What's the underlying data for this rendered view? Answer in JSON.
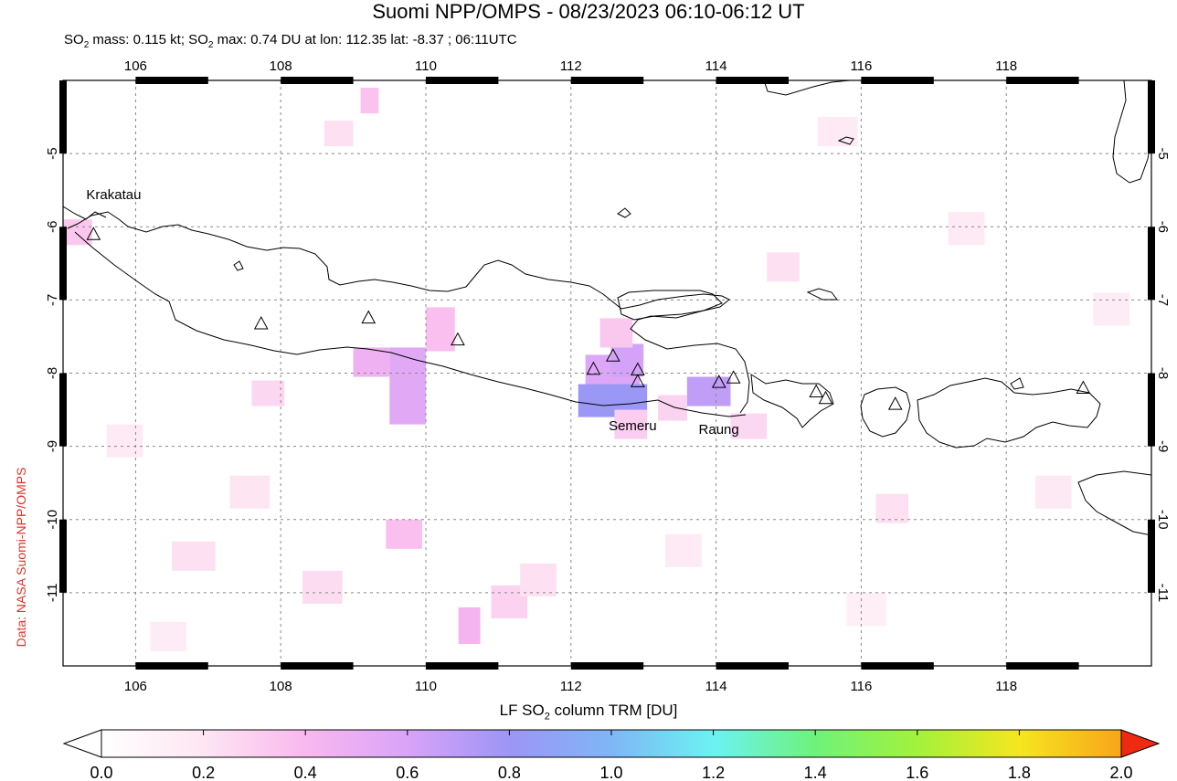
{
  "title": "Suomi NPP/OMPS - 08/23/2023 06:10-06:12 UT",
  "subtitle": {
    "mass_label": "SO",
    "mass_sub": "2",
    "mass_text": " mass: 0.115 kt; SO",
    "max_sub": "2",
    "max_text": " max: 0.74 DU at lon: 112.35 lat: -8.37 ; 06:11UTC"
  },
  "credit": "Data: NASA Suomi-NPP/OMPS",
  "colorbar": {
    "label_pre": "LF SO",
    "label_sub": "2",
    "label_post": " column TRM [DU]",
    "min": 0.0,
    "max": 2.0,
    "ticks": [
      "0.0",
      "0.2",
      "0.4",
      "0.6",
      "0.8",
      "1.0",
      "1.2",
      "1.4",
      "1.6",
      "1.8",
      "2.0"
    ],
    "colors": [
      "#ffffff",
      "#fde6f2",
      "#f9b8ee",
      "#d9a3f8",
      "#9d95f5",
      "#7fb6f6",
      "#6cf2f2",
      "#6ff27a",
      "#a2f23c",
      "#f5e620",
      "#f8a51a",
      "#ef2a12"
    ]
  },
  "map": {
    "lon_range": [
      105,
      120
    ],
    "lat_range": [
      -12,
      -4
    ],
    "lon_ticks": [
      "106",
      "108",
      "110",
      "112",
      "114",
      "116",
      "118"
    ],
    "lat_ticks": [
      "-5",
      "-6",
      "-7",
      "-8",
      "-9",
      "-10",
      "-11"
    ],
    "volcanoes": [
      {
        "name": "Krakatau",
        "lon": 105.42,
        "lat": -6.1
      },
      {
        "name": "",
        "lon": 107.73,
        "lat": -7.32
      },
      {
        "name": "",
        "lon": 109.21,
        "lat": -7.24
      },
      {
        "name": "",
        "lon": 110.44,
        "lat": -7.54
      },
      {
        "name": "",
        "lon": 112.31,
        "lat": -7.94
      },
      {
        "name": "",
        "lon": 112.58,
        "lat": -7.76
      },
      {
        "name": "",
        "lon": 112.92,
        "lat": -7.95
      },
      {
        "name": "Semeru",
        "lon": 112.92,
        "lat": -8.11
      },
      {
        "name": "Raung",
        "lon": 114.04,
        "lat": -8.12
      },
      {
        "name": "",
        "lon": 114.24,
        "lat": -8.06
      },
      {
        "name": "",
        "lon": 115.38,
        "lat": -8.25
      },
      {
        "name": "",
        "lon": 115.51,
        "lat": -8.34
      },
      {
        "name": "",
        "lon": 116.47,
        "lat": -8.42
      },
      {
        "name": "",
        "lon": 119.06,
        "lat": -8.2
      }
    ],
    "labels": [
      {
        "text": "Krakatau",
        "lon": 105.32,
        "lat": -5.62
      },
      {
        "text": "Semeru",
        "lon": 112.52,
        "lat": -8.78
      },
      {
        "text": "Raung",
        "lon": 113.76,
        "lat": -8.83
      }
    ],
    "so2_cells": [
      {
        "lon": 112.2,
        "lat": -7.75,
        "w": 0.75,
        "h": 0.4,
        "v": 0.52
      },
      {
        "lon": 112.55,
        "lat": -7.6,
        "w": 0.45,
        "h": 0.45,
        "v": 0.56
      },
      {
        "lon": 112.1,
        "lat": -8.15,
        "w": 0.95,
        "h": 0.45,
        "v": 0.74
      },
      {
        "lon": 113.6,
        "lat": -8.05,
        "w": 0.6,
        "h": 0.4,
        "v": 0.62
      },
      {
        "lon": 109.5,
        "lat": -7.65,
        "w": 0.5,
        "h": 1.05,
        "v": 0.5
      },
      {
        "lon": 109.0,
        "lat": -7.65,
        "w": 0.5,
        "h": 0.4,
        "v": 0.42
      },
      {
        "lon": 110.0,
        "lat": -7.1,
        "w": 0.4,
        "h": 0.6,
        "v": 0.34
      },
      {
        "lon": 112.4,
        "lat": -7.25,
        "w": 0.45,
        "h": 0.4,
        "v": 0.3
      },
      {
        "lon": 109.45,
        "lat": -10.0,
        "w": 0.5,
        "h": 0.4,
        "v": 0.34
      },
      {
        "lon": 110.45,
        "lat": -11.2,
        "w": 0.3,
        "h": 0.5,
        "v": 0.4
      },
      {
        "lon": 105.0,
        "lat": -5.9,
        "w": 0.4,
        "h": 0.35,
        "v": 0.3
      },
      {
        "lon": 109.1,
        "lat": -4.1,
        "w": 0.25,
        "h": 0.35,
        "v": 0.32
      },
      {
        "lon": 112.6,
        "lat": -8.5,
        "w": 0.45,
        "h": 0.4,
        "v": 0.28
      },
      {
        "lon": 113.2,
        "lat": -8.3,
        "w": 0.4,
        "h": 0.35,
        "v": 0.26
      },
      {
        "lon": 107.6,
        "lat": -8.1,
        "w": 0.45,
        "h": 0.35,
        "v": 0.24
      },
      {
        "lon": 106.5,
        "lat": -10.3,
        "w": 0.6,
        "h": 0.4,
        "v": 0.2
      },
      {
        "lon": 108.3,
        "lat": -10.7,
        "w": 0.55,
        "h": 0.45,
        "v": 0.22
      },
      {
        "lon": 114.2,
        "lat": -8.55,
        "w": 0.5,
        "h": 0.35,
        "v": 0.24
      },
      {
        "lon": 110.9,
        "lat": -10.9,
        "w": 0.5,
        "h": 0.45,
        "v": 0.26
      },
      {
        "lon": 116.2,
        "lat": -9.65,
        "w": 0.45,
        "h": 0.4,
        "v": 0.2
      },
      {
        "lon": 114.7,
        "lat": -6.35,
        "w": 0.45,
        "h": 0.4,
        "v": 0.2
      },
      {
        "lon": 108.6,
        "lat": -4.55,
        "w": 0.4,
        "h": 0.35,
        "v": 0.2
      },
      {
        "lon": 111.3,
        "lat": -10.6,
        "w": 0.5,
        "h": 0.45,
        "v": 0.2
      },
      {
        "lon": 107.3,
        "lat": -9.4,
        "w": 0.55,
        "h": 0.45,
        "v": 0.18
      },
      {
        "lon": 118.4,
        "lat": -9.4,
        "w": 0.5,
        "h": 0.45,
        "v": 0.16
      },
      {
        "lon": 117.2,
        "lat": -5.8,
        "w": 0.5,
        "h": 0.45,
        "v": 0.15
      },
      {
        "lon": 115.4,
        "lat": -4.5,
        "w": 0.55,
        "h": 0.4,
        "v": 0.15
      },
      {
        "lon": 105.6,
        "lat": -8.7,
        "w": 0.5,
        "h": 0.45,
        "v": 0.15
      },
      {
        "lon": 113.3,
        "lat": -10.2,
        "w": 0.5,
        "h": 0.45,
        "v": 0.15
      },
      {
        "lon": 119.2,
        "lat": -6.9,
        "w": 0.5,
        "h": 0.45,
        "v": 0.14
      },
      {
        "lon": 106.2,
        "lat": -11.4,
        "w": 0.5,
        "h": 0.4,
        "v": 0.14
      },
      {
        "lon": 115.8,
        "lat": -11.0,
        "w": 0.55,
        "h": 0.45,
        "v": 0.12
      }
    ]
  }
}
